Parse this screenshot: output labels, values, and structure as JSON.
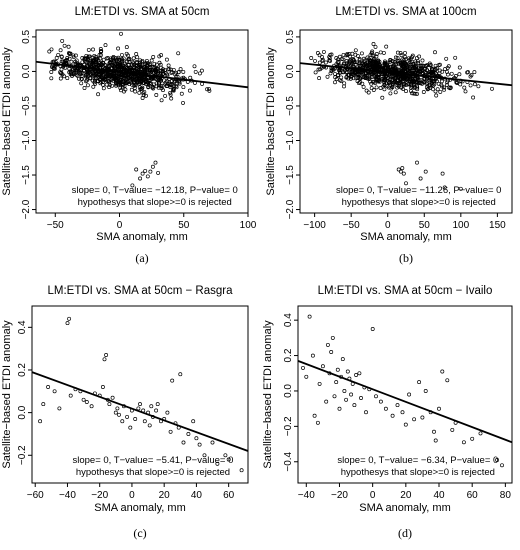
{
  "chart_data": [
    {
      "type": "scatter",
      "panel": "(a)",
      "title": "LM:ETDI vs. SMA at 50cm",
      "xlabel": "SMA anomaly, mm",
      "ylabel": "Satellite−based ETDI anomaly",
      "xlim": [
        -65,
        100
      ],
      "ylim": [
        -2.05,
        0.6
      ],
      "xticks": [
        -50,
        0,
        50,
        100
      ],
      "xtick_labels": [
        "−50",
        "0",
        "50",
        "100"
      ],
      "yticks": [
        -2.0,
        -1.5,
        -1.0,
        -0.5,
        0.0,
        0.5
      ],
      "ytick_labels": [
        "−2.0",
        "−1.5",
        "−1.0",
        "−0.5",
        "0.0",
        "0.5"
      ],
      "fit_line": {
        "x0": -65,
        "y0": 0.14,
        "x1": 100,
        "y1": -0.23
      },
      "cloud": {
        "n": 900,
        "x_center": 0,
        "x_sd": 25,
        "y_sd": 0.12,
        "x_min": -55,
        "x_max": 95,
        "seed": 11
      },
      "outliers": [
        [
          10,
          -1.65
        ],
        [
          13,
          -1.42
        ],
        [
          16,
          -1.55
        ],
        [
          18,
          -1.48
        ],
        [
          20,
          -1.44
        ],
        [
          22,
          -1.52
        ],
        [
          24,
          -1.45
        ],
        [
          26,
          -1.38
        ],
        [
          28,
          -1.32
        ],
        [
          30,
          -1.47
        ]
      ],
      "annotation_line1": "slope= 0,  T−value= −12.18,  P−value= 0",
      "annotation_line2": "hypothesys that slope>=0 is rejected",
      "caption": "(a)"
    },
    {
      "type": "scatter",
      "panel": "(b)",
      "title": "LM:ETDI vs. SMA at 100cm",
      "xlabel": "SMA anomaly, mm",
      "ylabel": "Satellite−based ETDI anomaly",
      "xlim": [
        -120,
        170
      ],
      "ylim": [
        -2.05,
        0.6
      ],
      "xticks": [
        -100,
        -50,
        0,
        50,
        100,
        150
      ],
      "xtick_labels": [
        "−100",
        "−50",
        "0",
        "50",
        "100",
        "150"
      ],
      "yticks": [
        -2.0,
        -1.5,
        -1.0,
        -0.5,
        0.0,
        0.5
      ],
      "ytick_labels": [
        "−2.0",
        "−1.5",
        "−1.0",
        "−0.5",
        "0.0",
        "0.5"
      ],
      "fit_line": {
        "x0": -120,
        "y0": 0.12,
        "x1": 170,
        "y1": -0.2
      },
      "cloud": {
        "n": 900,
        "x_center": 0,
        "x_sd": 45,
        "y_sd": 0.12,
        "x_min": -105,
        "x_max": 165,
        "seed": 23
      },
      "outliers": [
        [
          15,
          -1.42
        ],
        [
          18,
          -1.45
        ],
        [
          20,
          -1.4
        ],
        [
          22,
          -1.48
        ],
        [
          25,
          -1.62
        ],
        [
          40,
          -1.32
        ],
        [
          45,
          -1.55
        ],
        [
          52,
          -1.45
        ],
        [
          75,
          -1.48
        ],
        [
          78,
          -1.68
        ],
        [
          100,
          -1.7
        ]
      ],
      "annotation_line1": "slope= 0,  T−value= −11.26,  P−value= 0",
      "annotation_line2": "hypothesys that slope>=0 is rejected",
      "caption": "(b)"
    },
    {
      "type": "scatter",
      "panel": "(c)",
      "title": "LM:ETDI vs. SMA at 50cm − Rasgra",
      "xlabel": "SMA anomaly, mm",
      "ylabel": "Satellite−based ETDI anomaly",
      "xlim": [
        -62,
        72
      ],
      "ylim": [
        -0.33,
        0.5
      ],
      "xticks": [
        -60,
        -40,
        -20,
        0,
        20,
        40,
        60
      ],
      "xtick_labels": [
        "−60",
        "−40",
        "−20",
        "0",
        "20",
        "40",
        "60"
      ],
      "yticks": [
        -0.2,
        0.0,
        0.2,
        0.4
      ],
      "ytick_labels": [
        "−0.2",
        "0.0",
        "0.2",
        "0.4"
      ],
      "fit_line": {
        "x0": -62,
        "y0": 0.19,
        "x1": 72,
        "y1": -0.18
      },
      "points": [
        [
          -57,
          -0.04
        ],
        [
          -55,
          0.04
        ],
        [
          -52,
          0.12
        ],
        [
          -48,
          0.1
        ],
        [
          -45,
          0.02
        ],
        [
          -40,
          0.42
        ],
        [
          -39,
          0.44
        ],
        [
          -38,
          0.08
        ],
        [
          -35,
          0.11
        ],
        [
          -32,
          0.1
        ],
        [
          -30,
          0.06
        ],
        [
          -28,
          0.05
        ],
        [
          -25,
          0.03
        ],
        [
          -23,
          0.09
        ],
        [
          -20,
          0.08
        ],
        [
          -18,
          0.12
        ],
        [
          -17,
          0.25
        ],
        [
          -16,
          0.27
        ],
        [
          -15,
          0.06
        ],
        [
          -14,
          0.04
        ],
        [
          -12,
          0.07
        ],
        [
          -10,
          0.0
        ],
        [
          -9,
          0.02
        ],
        [
          -8,
          -0.01
        ],
        [
          -6,
          -0.04
        ],
        [
          -5,
          0.03
        ],
        [
          -3,
          -0.02
        ],
        [
          -1,
          -0.07
        ],
        [
          0,
          0.01
        ],
        [
          2,
          -0.03
        ],
        [
          4,
          0.02
        ],
        [
          5,
          0.04
        ],
        [
          7,
          0.01
        ],
        [
          8,
          -0.04
        ],
        [
          10,
          0.0
        ],
        [
          11,
          -0.06
        ],
        [
          12,
          0.03
        ],
        [
          13,
          -0.02
        ],
        [
          15,
          0.01
        ],
        [
          16,
          0.04
        ],
        [
          18,
          -0.04
        ],
        [
          20,
          -0.03
        ],
        [
          22,
          0.0
        ],
        [
          24,
          -0.09
        ],
        [
          25,
          0.15
        ],
        [
          27,
          -0.05
        ],
        [
          29,
          -0.07
        ],
        [
          30,
          0.18
        ],
        [
          32,
          -0.14
        ],
        [
          35,
          -0.1
        ],
        [
          38,
          -0.04
        ],
        [
          40,
          -0.12
        ],
        [
          42,
          -0.15
        ],
        [
          45,
          -0.2
        ],
        [
          50,
          -0.14
        ],
        [
          53,
          -0.24
        ],
        [
          58,
          -0.2
        ],
        [
          60,
          -0.22
        ],
        [
          68,
          -0.27
        ]
      ],
      "annotation_line1": "slope= 0,  T−value= −5.41,  P−value= 0",
      "annotation_line2": "hypothesys that slope>=0 is rejected",
      "caption": "(c)"
    },
    {
      "type": "scatter",
      "panel": "(d)",
      "title": "LM:ETDI vs. SMA at 50cm − Ivailo",
      "xlabel": "SMA anomaly, mm",
      "ylabel": "Satellite−based ETDI anomaly",
      "xlim": [
        -45,
        84
      ],
      "ylim": [
        -0.52,
        0.48
      ],
      "xticks": [
        -40,
        -20,
        0,
        20,
        40,
        60,
        80
      ],
      "xtick_labels": [
        "−40",
        "−20",
        "0",
        "20",
        "40",
        "60",
        "80"
      ],
      "yticks": [
        -0.4,
        -0.2,
        0.0,
        0.2,
        0.4
      ],
      "ytick_labels": [
        "−0.4",
        "−0.2",
        "0.0",
        "0.2",
        "0.4"
      ],
      "fit_line": {
        "x0": -45,
        "y0": 0.17,
        "x1": 84,
        "y1": -0.29
      },
      "points": [
        [
          -42,
          0.13
        ],
        [
          -40,
          0.08
        ],
        [
          -38,
          0.42
        ],
        [
          -36,
          0.2
        ],
        [
          -35,
          -0.14
        ],
        [
          -33,
          -0.18
        ],
        [
          -32,
          0.04
        ],
        [
          -30,
          0.14
        ],
        [
          -28,
          -0.06
        ],
        [
          -27,
          0.26
        ],
        [
          -26,
          0.1
        ],
        [
          -25,
          0.22
        ],
        [
          -24,
          0.3
        ],
        [
          -23,
          -0.03
        ],
        [
          -22,
          0.05
        ],
        [
          -21,
          0.12
        ],
        [
          -20,
          -0.1
        ],
        [
          -19,
          0.08
        ],
        [
          -18,
          0.18
        ],
        [
          -17,
          0.0
        ],
        [
          -16,
          -0.05
        ],
        [
          -15,
          0.11
        ],
        [
          -14,
          0.07
        ],
        [
          -13,
          -0.02
        ],
        [
          -12,
          0.04
        ],
        [
          -11,
          -0.08
        ],
        [
          -10,
          0.09
        ],
        [
          -8,
          0.1
        ],
        [
          -7,
          -0.04
        ],
        [
          -5,
          0.02
        ],
        [
          -4,
          -0.12
        ],
        [
          -2,
          0.01
        ],
        [
          0,
          0.35
        ],
        [
          2,
          -0.03
        ],
        [
          5,
          -0.06
        ],
        [
          8,
          -0.1
        ],
        [
          12,
          -0.14
        ],
        [
          15,
          -0.08
        ],
        [
          18,
          -0.12
        ],
        [
          20,
          -0.19
        ],
        [
          22,
          -0.02
        ],
        [
          25,
          -0.16
        ],
        [
          28,
          0.05
        ],
        [
          30,
          -0.15
        ],
        [
          32,
          0.0
        ],
        [
          35,
          -0.12
        ],
        [
          37,
          -0.23
        ],
        [
          38,
          -0.28
        ],
        [
          40,
          -0.1
        ],
        [
          42,
          0.11
        ],
        [
          45,
          0.06
        ],
        [
          48,
          -0.22
        ],
        [
          50,
          -0.18
        ],
        [
          55,
          -0.29
        ],
        [
          60,
          -0.27
        ],
        [
          65,
          -0.24
        ],
        [
          75,
          -0.39
        ],
        [
          78,
          -0.42
        ]
      ],
      "annotation_line1": "slope= 0,  T−value= −6.34,  P−value= 0",
      "annotation_line2": "hypothesys that slope>=0 is rejected",
      "caption": "(d)"
    }
  ]
}
